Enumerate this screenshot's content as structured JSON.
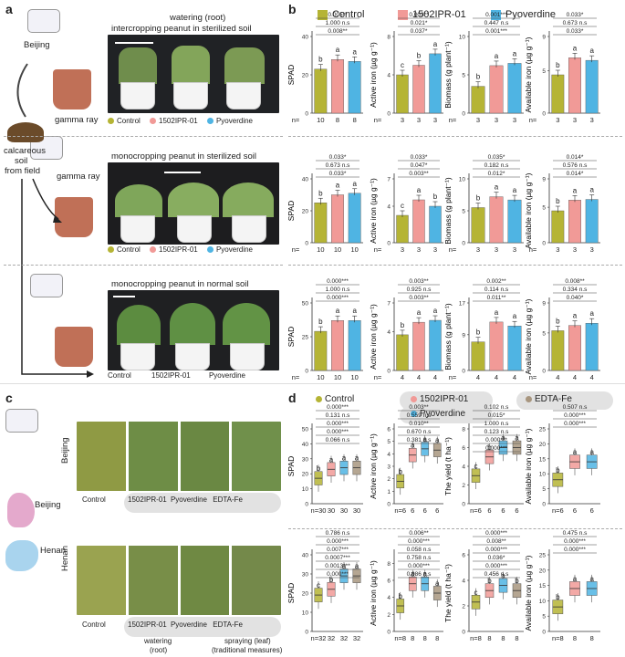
{
  "panel_labels": {
    "a": "a",
    "b": "b",
    "c": "c",
    "d": "d"
  },
  "a": {
    "beijing": "Beijing",
    "gamma_ray_1": "gamma ray",
    "gamma_ray_2": "gamma ray",
    "calcareous": "calcareous",
    "soil": "soil",
    "from_field": "from field",
    "row1_title_1": "watering (root)",
    "row1_title_2": "intercropping peanut in sterilized  soil",
    "row2_title": "monocropping peanut in sterilized soil",
    "row3_title": "monocropping peanut in normal soil",
    "treatments": [
      "Control",
      "1502IPR-01",
      "Pyoverdine"
    ]
  },
  "c": {
    "beijing_row": "Beijing",
    "henan_row": "Henan",
    "map_beijing": "Beijing",
    "map_henan": "Henan",
    "treatments": [
      "Control",
      "1502IPR-01",
      "Pyoverdine",
      "EDTA-Fe"
    ],
    "watering": "watering",
    "root": "(root)",
    "spraying": "spraying (leaf)",
    "traditional": "(traditional measures)"
  },
  "legend_b": [
    {
      "name": "Control",
      "color": "#b5b435"
    },
    {
      "name": "1502IPR-01",
      "color": "#f19a97"
    },
    {
      "name": "Pyoverdine",
      "color": "#4fb4e3"
    }
  ],
  "legend_d": [
    {
      "name": "Control",
      "color": "#b5b435"
    },
    {
      "name": "1502IPR-01",
      "color": "#f19a97"
    },
    {
      "name": "Pyoverdine",
      "color": "#4fb4e3"
    },
    {
      "name": "EDTA-Fe",
      "color": "#a8967f"
    }
  ],
  "chart_data": [
    {
      "panel": "b",
      "row": 1,
      "type": "bar",
      "ylabel": "SPAD",
      "categories": [
        "Control",
        "1502IPR-01",
        "Pyoverdine"
      ],
      "values": [
        23,
        28,
        27
      ],
      "letters": [
        "b",
        "a",
        "a"
      ],
      "n": [
        "10",
        "8",
        "8"
      ],
      "stats": [
        "0.005**",
        "1.000 n.s",
        "0.008**"
      ],
      "ylim": [
        0,
        40
      ]
    },
    {
      "panel": "b",
      "row": 1,
      "type": "bar",
      "ylabel": "Active iron (µg g⁻¹)",
      "categories": [
        "Control",
        "1502IPR-01",
        "Pyoverdine"
      ],
      "values": [
        4.0,
        5.0,
        6.2
      ],
      "letters": [
        "c",
        "b",
        "a"
      ],
      "n": [
        "3",
        "3",
        "3"
      ],
      "stats": [
        "0.003**",
        "0.021*",
        "0.037*"
      ],
      "ylim": [
        0,
        8
      ]
    },
    {
      "panel": "b",
      "row": 1,
      "type": "bar",
      "ylabel": "Biomass (g plant⁻¹)",
      "categories": [
        "Control",
        "1502IPR-01",
        "Pyoverdine"
      ],
      "values": [
        3.5,
        6.2,
        6.5
      ],
      "letters": [
        "b",
        "a",
        "a"
      ],
      "n": [
        "3",
        "3",
        "3"
      ],
      "stats": [
        "0.001***",
        "0.447 n.s",
        "0.001***"
      ],
      "ylim": [
        0,
        10
      ]
    },
    {
      "panel": "b",
      "row": 1,
      "type": "bar",
      "ylabel": "Available iron (µg g⁻¹)",
      "categories": [
        "Control",
        "1502IPR-01",
        "Pyoverdine"
      ],
      "values": [
        4.5,
        6.5,
        6.2
      ],
      "letters": [
        "b",
        "a",
        "a"
      ],
      "n": [
        "3",
        "3",
        "3"
      ],
      "stats": [
        "0.033*",
        "0.673 n.s",
        "0.033*"
      ],
      "ylim": [
        0,
        9
      ]
    },
    {
      "panel": "b",
      "row": 2,
      "type": "bar",
      "ylabel": "SPAD",
      "categories": [
        "Control",
        "1502IPR-01",
        "Pyoverdine"
      ],
      "values": [
        25,
        30,
        31
      ],
      "letters": [
        "b",
        "a",
        "a"
      ],
      "n": [
        "10",
        "10",
        "10"
      ],
      "stats": [
        "0.033*",
        "0.673 n.s",
        "0.033*"
      ],
      "ylim": [
        0,
        40
      ]
    },
    {
      "panel": "b",
      "row": 2,
      "type": "bar",
      "ylabel": "Active iron (µg g⁻¹)",
      "categories": [
        "Control",
        "1502IPR-01",
        "Pyoverdine"
      ],
      "values": [
        3.0,
        4.7,
        4.0
      ],
      "letters": [
        "c",
        "a",
        "b"
      ],
      "n": [
        "3",
        "3",
        "3"
      ],
      "stats": [
        "0.033*",
        "0.047*",
        "0.003**"
      ],
      "ylim": [
        0,
        7
      ]
    },
    {
      "panel": "b",
      "row": 2,
      "type": "bar",
      "ylabel": "Biomass (g plant⁻¹)",
      "categories": [
        "Control",
        "1502IPR-01",
        "Pyoverdine"
      ],
      "values": [
        5.5,
        7.2,
        6.7
      ],
      "letters": [
        "b",
        "a",
        "a"
      ],
      "n": [
        "3",
        "3",
        "3"
      ],
      "stats": [
        "0.035*",
        "0.182 n.s",
        "0.012*"
      ],
      "ylim": [
        0,
        10
      ]
    },
    {
      "panel": "b",
      "row": 2,
      "type": "bar",
      "ylabel": "Available iron (µg g⁻¹)",
      "categories": [
        "Control",
        "1502IPR-01",
        "Pyoverdine"
      ],
      "values": [
        4.5,
        6.0,
        6.1
      ],
      "letters": [
        "b",
        "a",
        "a"
      ],
      "n": [
        "3",
        "3",
        "3"
      ],
      "stats": [
        "0.014*",
        "0.576 n.s",
        "0.014*"
      ],
      "ylim": [
        0,
        9
      ]
    },
    {
      "panel": "b",
      "row": 3,
      "type": "bar",
      "ylabel": "SPAD",
      "categories": [
        "Control",
        "1502IPR-01",
        "Pyoverdine"
      ],
      "values": [
        29,
        37,
        37
      ],
      "letters": [
        "b",
        "a",
        "a"
      ],
      "n": [
        "10",
        "10",
        "10"
      ],
      "stats": [
        "0.000***",
        "1.000 n.s",
        "0.000***"
      ],
      "ylim": [
        0,
        50
      ]
    },
    {
      "panel": "b",
      "row": 3,
      "type": "bar",
      "ylabel": "Active iron (µg g⁻¹)",
      "categories": [
        "Control",
        "1502IPR-01",
        "Pyoverdine"
      ],
      "values": [
        3.7,
        5.0,
        5.2
      ],
      "letters": [
        "b",
        "a",
        "a"
      ],
      "n": [
        "4",
        "4",
        "4"
      ],
      "stats": [
        "0.003**",
        "0.925 n.s",
        "0.003**"
      ],
      "ylim": [
        0,
        7
      ]
    },
    {
      "panel": "b",
      "row": 3,
      "type": "bar",
      "ylabel": "Biomass (g plant⁻¹)",
      "categories": [
        "Control",
        "1502IPR-01",
        "Pyoverdine"
      ],
      "values": [
        7.2,
        12.2,
        11.2
      ],
      "letters": [
        "b",
        "a",
        "a"
      ],
      "n": [
        "4",
        "4",
        "4"
      ],
      "stats": [
        "0.002**",
        "0.114 n.s",
        "0.011**"
      ],
      "ylim": [
        0,
        17
      ]
    },
    {
      "panel": "b",
      "row": 3,
      "type": "bar",
      "ylabel": "Available iron (µg g⁻¹)",
      "categories": [
        "Control",
        "1502IPR-01",
        "Pyoverdine"
      ],
      "values": [
        5.3,
        6.0,
        6.3
      ],
      "letters": [
        "b",
        "a",
        "a"
      ],
      "n": [
        "4",
        "4",
        "4"
      ],
      "stats": [
        "0.008**",
        "0.334 n.s",
        "0.040*"
      ],
      "ylim": [
        0,
        9
      ]
    },
    {
      "panel": "d",
      "row": 1,
      "type": "box",
      "ylabel": "SPAD",
      "categories": [
        "Control",
        "1502IPR-01",
        "Pyoverdine",
        "EDTA-Fe"
      ],
      "medians": [
        17,
        23,
        24,
        24
      ],
      "letters": [
        "b",
        "a",
        "a",
        "a"
      ],
      "n": [
        "n=30",
        "30",
        "30",
        "30"
      ],
      "stats": [
        "0.000***",
        "0.131 n.s",
        "0.000***",
        "0.000***",
        "0.066 n.s"
      ],
      "yticks": [
        "0",
        "10",
        "20",
        "30",
        "40",
        "50"
      ],
      "ylim": [
        0,
        50
      ]
    },
    {
      "panel": "d",
      "row": 1,
      "type": "box",
      "ylabel": "Active iron (µg g⁻¹)",
      "categories": [
        "Control",
        "1502IPR-01",
        "Pyoverdine",
        "EDTA-Fe"
      ],
      "medians": [
        1.8,
        3.9,
        4.4,
        4.3
      ],
      "letters": [
        "b",
        "a",
        "a",
        "a"
      ],
      "n": [
        "n=6",
        "6",
        "6",
        "6"
      ],
      "stats": [
        "0.003**",
        "0.559 n.s",
        "0.010**",
        "0.670 n.s",
        "0.381 n.s"
      ],
      "yticks": [
        "0",
        "1",
        "2",
        "3",
        "4",
        "5",
        "6"
      ],
      "ylim": [
        0,
        6
      ]
    },
    {
      "panel": "d",
      "row": 1,
      "type": "box",
      "ylabel": "The yield (t ha⁻¹)",
      "categories": [
        "Control",
        "1502IPR-01",
        "Pyoverdine",
        "EDTA-Fe"
      ],
      "medians": [
        3.0,
        5.0,
        6.0,
        6.0
      ],
      "letters": [
        "c",
        "b",
        "a",
        "a"
      ],
      "n": [
        "n=6",
        "6",
        "6",
        "6"
      ],
      "stats": [
        "0.102 n.s",
        "0.015*",
        "1.000 n.s",
        "0.123 n.s",
        "0.000***",
        "0.000***"
      ],
      "yticks": [
        "0",
        "2",
        "4",
        "6",
        "8"
      ],
      "ylim": [
        0,
        8
      ]
    },
    {
      "panel": "d",
      "row": 1,
      "type": "box",
      "ylabel": "Available iron (µg g⁻¹)",
      "categories": [
        "Control",
        "1502IPR-01",
        "Pyoverdine"
      ],
      "medians": [
        8,
        14,
        14
      ],
      "letters": [
        "b",
        "a",
        "a"
      ],
      "n": [
        "n=6",
        "6",
        "6"
      ],
      "stats": [
        "0.507 n.s",
        "0.000***",
        "0.000***"
      ],
      "yticks": [
        "0",
        "5",
        "10",
        "15",
        "20",
        "25"
      ],
      "ylim": [
        0,
        25
      ]
    },
    {
      "panel": "d",
      "row": 2,
      "type": "box",
      "ylabel": "SPAD",
      "categories": [
        "Control",
        "1502IPR-01",
        "Pyoverdine",
        "EDTA-Fe"
      ],
      "medians": [
        19,
        22,
        29,
        29
      ],
      "letters": [
        "c",
        "b",
        "a",
        "a"
      ],
      "n": [
        "n=32",
        "32",
        "32",
        "32"
      ],
      "stats": [
        "0.786 n.s",
        "0.000***",
        "0.007***",
        "0.0007***",
        "0.0013***",
        "0.000***"
      ],
      "yticks": [
        "0",
        "10",
        "20",
        "30",
        "40"
      ],
      "ylim": [
        0,
        40
      ]
    },
    {
      "panel": "d",
      "row": 2,
      "type": "box",
      "ylabel": "Active iron (µg g⁻¹)",
      "categories": [
        "Control",
        "1502IPR-01",
        "Pyoverdine",
        "EDTA-Fe"
      ],
      "medians": [
        3.0,
        5.6,
        5.6,
        4.5
      ],
      "letters": [
        "b",
        "a",
        "a",
        "a"
      ],
      "n": [
        "n=8",
        "8",
        "8",
        "8"
      ],
      "stats": [
        "0.006**",
        "0.000***",
        "0.058 n.s",
        "0.758 n.s",
        "0.000***",
        "0.086 n.s"
      ],
      "yticks": [
        "0",
        "2",
        "4",
        "6",
        "8"
      ],
      "ylim": [
        0,
        9
      ]
    },
    {
      "panel": "d",
      "row": 2,
      "type": "box",
      "ylabel": "The yield (t ha⁻¹)",
      "categories": [
        "Control",
        "1502IPR-01",
        "Pyoverdine",
        "EDTA-Fe"
      ],
      "medians": [
        2.3,
        3.2,
        3.6,
        3.2
      ],
      "letters": [
        "c",
        "b",
        "a",
        "b"
      ],
      "n": [
        "n=8",
        "8",
        "8",
        "8"
      ],
      "stats": [
        "0.000***",
        "0.008**",
        "0.000***",
        "0.036*",
        "0.000***",
        "0.456 n.s"
      ],
      "yticks": [
        "0",
        "2",
        "4",
        "6"
      ],
      "ylim": [
        0,
        6
      ]
    },
    {
      "panel": "d",
      "row": 2,
      "type": "box",
      "ylabel": "Available iron (µg g⁻¹)",
      "categories": [
        "Control",
        "1502IPR-01",
        "Pyoverdine"
      ],
      "medians": [
        8,
        14,
        14
      ],
      "letters": [
        "b",
        "a",
        "a"
      ],
      "n": [
        "n=8",
        "8",
        "8"
      ],
      "stats": [
        "0.475 n.s",
        "0.000***",
        "0.000***"
      ],
      "yticks": [
        "0",
        "5",
        "10",
        "15",
        "20",
        "25"
      ],
      "ylim": [
        0,
        25
      ]
    }
  ]
}
